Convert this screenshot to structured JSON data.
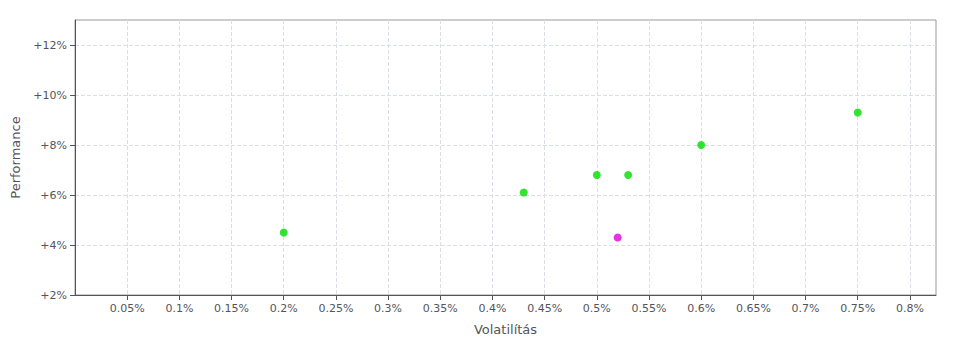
{
  "chart_data": {
    "type": "scatter",
    "xlabel": "Volatilítás",
    "ylabel": "Performance",
    "xlim": [
      0.0,
      0.825
    ],
    "ylim": [
      0.02,
      0.13
    ],
    "xticks": [
      {
        "value": 0.05,
        "label": "0.05%"
      },
      {
        "value": 0.1,
        "label": "0.1%"
      },
      {
        "value": 0.15,
        "label": "0.15%"
      },
      {
        "value": 0.2,
        "label": "0.2%"
      },
      {
        "value": 0.25,
        "label": "0.25%"
      },
      {
        "value": 0.3,
        "label": "0.3%"
      },
      {
        "value": 0.35,
        "label": "0.35%"
      },
      {
        "value": 0.4,
        "label": "0.4%"
      },
      {
        "value": 0.45,
        "label": "0.45%"
      },
      {
        "value": 0.5,
        "label": "0.5%"
      },
      {
        "value": 0.55,
        "label": "0.55%"
      },
      {
        "value": 0.6,
        "label": "0.6%"
      },
      {
        "value": 0.65,
        "label": "0.65%"
      },
      {
        "value": 0.7,
        "label": "0.7%"
      },
      {
        "value": 0.75,
        "label": "0.75%"
      },
      {
        "value": 0.8,
        "label": "0.8%"
      }
    ],
    "yticks": [
      {
        "value": 0.02,
        "label": "+2%"
      },
      {
        "value": 0.04,
        "label": "+4%"
      },
      {
        "value": 0.06,
        "label": "+6%"
      },
      {
        "value": 0.08,
        "label": "+8%"
      },
      {
        "value": 0.1,
        "label": "+10%"
      },
      {
        "value": 0.12,
        "label": "+12%"
      }
    ],
    "grid": true,
    "series": [
      {
        "color": "#00dd00",
        "x": [
          0.2,
          0.43,
          0.5,
          0.53,
          0.6,
          0.75
        ],
        "values": [
          0.045,
          0.061,
          0.068,
          0.068,
          0.08,
          0.093
        ]
      },
      {
        "color": "#dd00dd",
        "x": [
          0.52
        ],
        "values": [
          0.043
        ]
      }
    ]
  }
}
